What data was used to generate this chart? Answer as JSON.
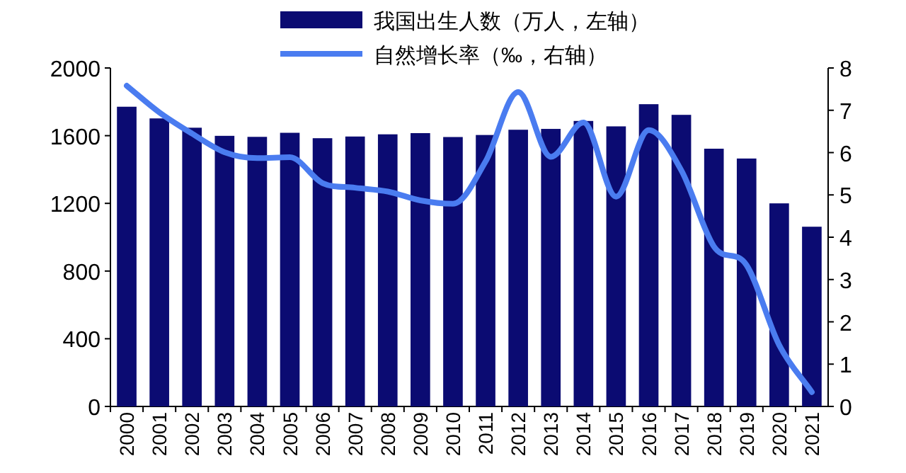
{
  "chart_data": {
    "type": "bar",
    "categories": [
      "2000",
      "2001",
      "2002",
      "2003",
      "2004",
      "2005",
      "2006",
      "2007",
      "2008",
      "2009",
      "2010",
      "2011",
      "2012",
      "2013",
      "2014",
      "2015",
      "2016",
      "2017",
      "2018",
      "2019",
      "2020",
      "2021"
    ],
    "series": [
      {
        "name": "我国出生人数（万人，左轴）",
        "color": "#0b0b72",
        "values": [
          1771,
          1702,
          1647,
          1599,
          1593,
          1617,
          1585,
          1595,
          1608,
          1615,
          1592,
          1604,
          1635,
          1640,
          1687,
          1655,
          1786,
          1723,
          1523,
          1465,
          1200,
          1062
        ]
      },
      {
        "name": "自然增长率（‰，右轴）",
        "type": "line",
        "axis": "y2",
        "color": "#4a7cf0",
        "values": [
          7.58,
          6.95,
          6.45,
          6.01,
          5.87,
          5.89,
          5.28,
          5.17,
          5.08,
          4.87,
          4.79,
          5.79,
          7.43,
          5.9,
          6.71,
          4.96,
          6.53,
          5.58,
          3.78,
          3.34,
          1.45,
          0.34
        ]
      }
    ],
    "ylim": [
      0,
      2000
    ],
    "yticks": [
      0,
      400,
      800,
      1200,
      1600,
      2000
    ],
    "y2lim": [
      0,
      8
    ],
    "y2ticks": [
      0,
      1,
      2,
      3,
      4,
      5,
      6,
      7,
      8
    ],
    "legend": "top"
  }
}
